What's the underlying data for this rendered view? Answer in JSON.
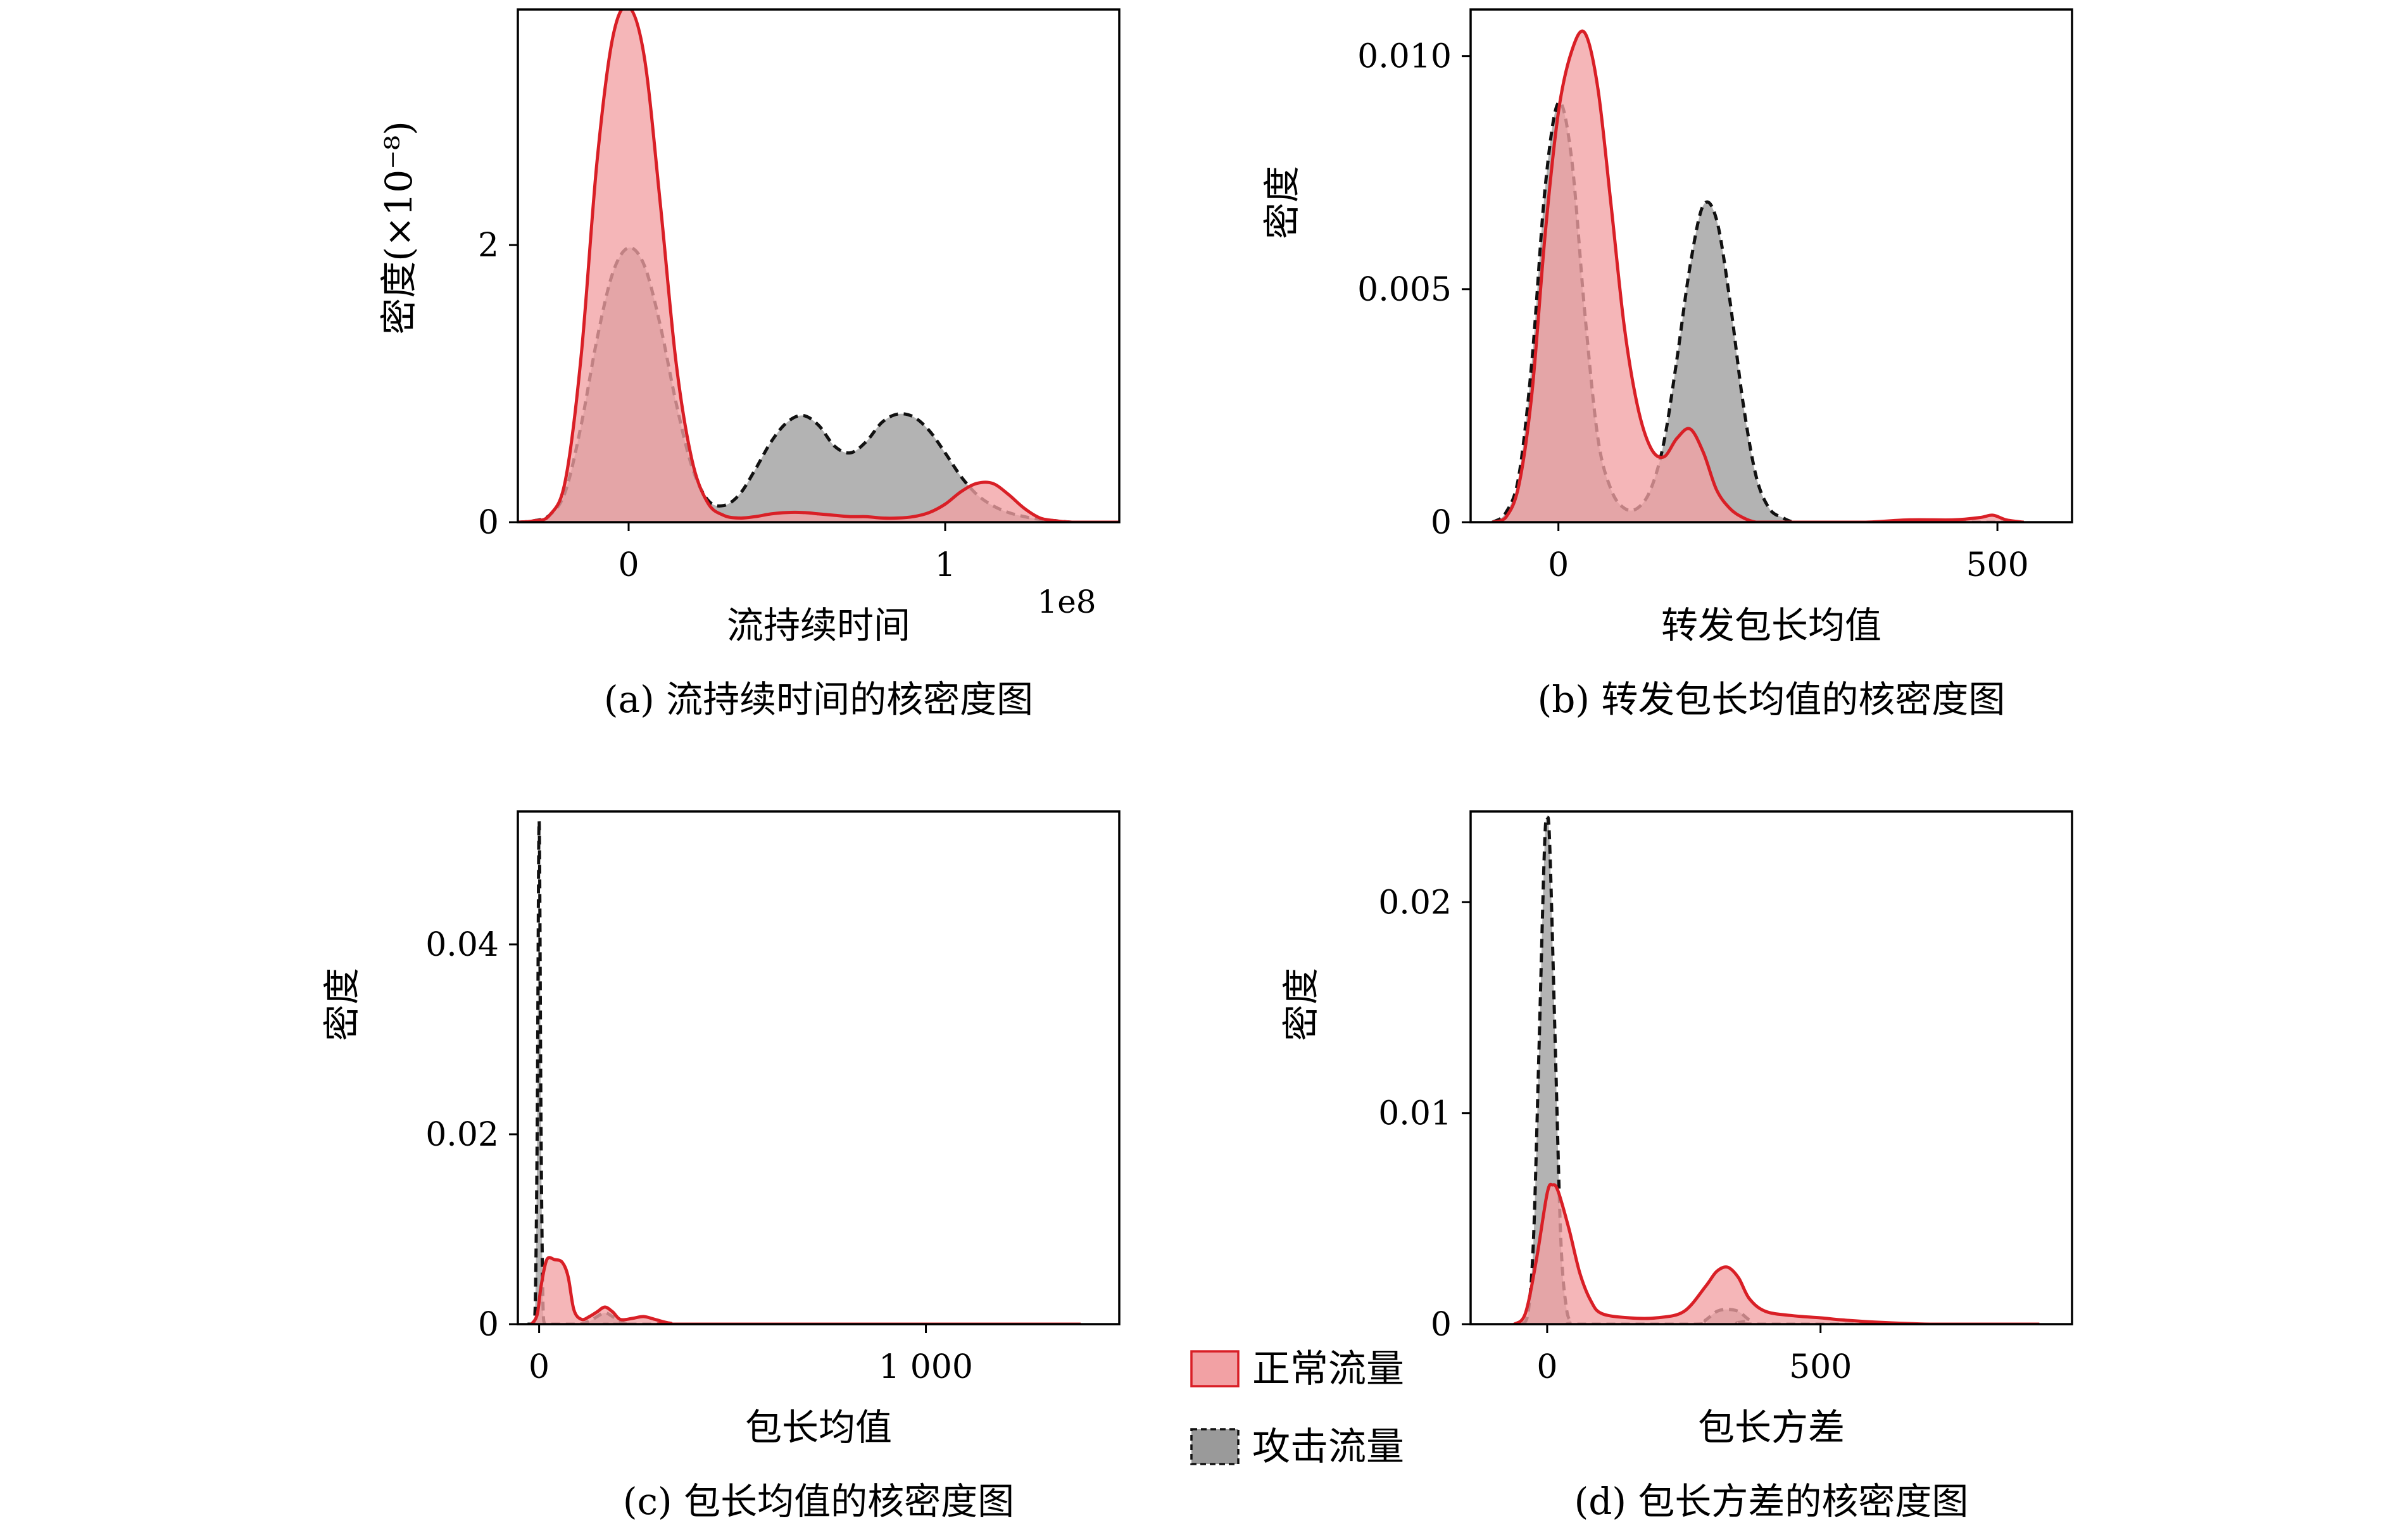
{
  "colors": {
    "normal_line": "#d91f26",
    "normal_fill": "#f2a1a4",
    "attack_line": "#111111",
    "attack_fill": "#9a9a9a"
  },
  "legend": {
    "normal": "正常流量",
    "attack": "攻击流量"
  },
  "chart_data": [
    {
      "type": "area",
      "caption": "(a) 流持续时间的核密度图",
      "xlabel": "流持续时间",
      "ylabel": "密度(×10⁻⁸)",
      "x_offset_label": "1e8",
      "xlim": [
        -0.35,
        1.55
      ],
      "ylim": [
        0,
        3.7
      ],
      "xticks": [
        {
          "value": 0,
          "label": "0"
        },
        {
          "value": 1,
          "label": "1"
        }
      ],
      "yticks": [
        {
          "value": 0,
          "label": "0"
        },
        {
          "value": 2,
          "label": "2"
        }
      ],
      "series": [
        {
          "name": "攻击流量",
          "style": "attack",
          "x": [
            -0.35,
            -0.3,
            -0.25,
            -0.2,
            -0.15,
            -0.1,
            -0.05,
            0,
            0.05,
            0.1,
            0.15,
            0.2,
            0.25,
            0.3,
            0.35,
            0.4,
            0.45,
            0.5,
            0.55,
            0.6,
            0.65,
            0.7,
            0.75,
            0.8,
            0.85,
            0.9,
            0.95,
            1,
            1.05,
            1.1,
            1.15,
            1.2,
            1.25,
            1.3,
            1.35,
            1.4,
            1.45,
            1.5,
            1.55
          ],
          "y": [
            0,
            0.01,
            0.05,
            0.22,
            0.7,
            1.32,
            1.8,
            1.98,
            1.85,
            1.42,
            0.86,
            0.4,
            0.16,
            0.12,
            0.2,
            0.38,
            0.58,
            0.72,
            0.77,
            0.7,
            0.55,
            0.5,
            0.58,
            0.72,
            0.78,
            0.76,
            0.66,
            0.5,
            0.33,
            0.2,
            0.12,
            0.07,
            0.04,
            0.02,
            0.01,
            0,
            0,
            0,
            0
          ]
        },
        {
          "name": "正常流量",
          "style": "normal",
          "x": [
            -0.35,
            -0.3,
            -0.25,
            -0.2,
            -0.15,
            -0.1,
            -0.05,
            0,
            0.05,
            0.1,
            0.15,
            0.2,
            0.25,
            0.3,
            0.35,
            0.4,
            0.45,
            0.5,
            0.55,
            0.6,
            0.65,
            0.7,
            0.75,
            0.8,
            0.85,
            0.9,
            0.95,
            1,
            1.05,
            1.1,
            1.15,
            1.2,
            1.25,
            1.3,
            1.35,
            1.4,
            1.45,
            1.5,
            1.55
          ],
          "y": [
            0,
            0.01,
            0.05,
            0.3,
            1.2,
            2.6,
            3.5,
            3.72,
            3.35,
            2.3,
            1.15,
            0.45,
            0.14,
            0.05,
            0.03,
            0.04,
            0.06,
            0.07,
            0.07,
            0.06,
            0.05,
            0.04,
            0.04,
            0.03,
            0.03,
            0.04,
            0.07,
            0.13,
            0.22,
            0.28,
            0.28,
            0.2,
            0.1,
            0.03,
            0.01,
            0,
            0,
            0,
            0
          ]
        }
      ]
    },
    {
      "type": "area",
      "caption": "(b) 转发包长均值的核密度图",
      "xlabel": "转发包长均值",
      "ylabel": "密度",
      "xlim": [
        -100,
        585
      ],
      "ylim": [
        0,
        0.011
      ],
      "xticks": [
        {
          "value": 0,
          "label": "0"
        },
        {
          "value": 500,
          "label": "500"
        }
      ],
      "yticks": [
        {
          "value": 0,
          "label": "0"
        },
        {
          "value": 0.005,
          "label": "0.005"
        },
        {
          "value": 0.01,
          "label": "0.010"
        }
      ],
      "series": [
        {
          "name": "攻击流量",
          "style": "attack",
          "x": [
            -75,
            -60,
            -45,
            -30,
            -15,
            0,
            15,
            30,
            45,
            60,
            75,
            90,
            105,
            120,
            135,
            150,
            165,
            180,
            195,
            210,
            225,
            240,
            255,
            270,
            300,
            350,
            400,
            450,
            500,
            530
          ],
          "y": [
            0,
            0.0002,
            0.001,
            0.0035,
            0.0072,
            0.009,
            0.0078,
            0.0045,
            0.0018,
            0.0007,
            0.0003,
            0.0003,
            0.0007,
            0.0017,
            0.0035,
            0.0055,
            0.0068,
            0.0065,
            0.0048,
            0.0026,
            0.001,
            0.0003,
            0.0001,
            0,
            0,
            0,
            0,
            0,
            0,
            0
          ]
        },
        {
          "name": "正常流量",
          "style": "normal",
          "x": [
            -75,
            -60,
            -45,
            -30,
            -15,
            0,
            15,
            30,
            45,
            60,
            75,
            90,
            105,
            120,
            135,
            150,
            165,
            180,
            195,
            210,
            225,
            240,
            255,
            270,
            300,
            350,
            400,
            450,
            480,
            495,
            510,
            530
          ],
          "y": [
            0,
            0.0001,
            0.0008,
            0.0028,
            0.0062,
            0.0088,
            0.0101,
            0.0105,
            0.0093,
            0.0068,
            0.0042,
            0.0025,
            0.0016,
            0.0014,
            0.0018,
            0.002,
            0.0015,
            0.0007,
            0.0003,
            0.0001,
            0,
            0,
            0,
            0,
            0,
            0,
            5e-05,
            5e-05,
            0.0001,
            0.00015,
            5e-05,
            0
          ]
        }
      ]
    },
    {
      "type": "area",
      "caption": "(c)  包长均值的核密度图",
      "xlabel": "包长均值",
      "ylabel": "密度",
      "xlim": [
        -55,
        1500
      ],
      "ylim": [
        0,
        0.054
      ],
      "xticks": [
        {
          "value": 0,
          "label": "0"
        },
        {
          "value": 1000,
          "label": "1 000"
        }
      ],
      "yticks": [
        {
          "value": 0,
          "label": "0"
        },
        {
          "value": 0.02,
          "label": "0.02"
        },
        {
          "value": 0.04,
          "label": "0.04"
        }
      ],
      "series": [
        {
          "name": "攻击流量",
          "style": "attack",
          "x": [
            -30,
            -15,
            -10,
            -5,
            0,
            5,
            10,
            15,
            30,
            100,
            130,
            150,
            170,
            190,
            210,
            230,
            260,
            1400
          ],
          "y": [
            0,
            0,
            0.002,
            0.02,
            0.053,
            0.02,
            0.002,
            0,
            0,
            0,
            0.0003,
            0.0008,
            0.0012,
            0.0008,
            0.0003,
            0,
            0,
            0
          ]
        },
        {
          "name": "正常流量",
          "style": "normal",
          "x": [
            -20,
            -5,
            5,
            20,
            40,
            60,
            75,
            90,
            110,
            130,
            150,
            170,
            190,
            210,
            240,
            270,
            300,
            340,
            400,
            1400
          ],
          "y": [
            0,
            0.001,
            0.004,
            0.0068,
            0.0068,
            0.0065,
            0.005,
            0.0015,
            0.0005,
            0.0008,
            0.0013,
            0.0018,
            0.0013,
            0.0005,
            0.0006,
            0.0008,
            0.0005,
            0.0001,
            0,
            0
          ]
        }
      ]
    },
    {
      "type": "area",
      "caption": "(d) 包长方差的核密度图",
      "xlabel": "包长方差",
      "ylabel": "密度",
      "xlim": [
        -140,
        960
      ],
      "ylim": [
        0,
        0.0243
      ],
      "xticks": [
        {
          "value": 0,
          "label": "0"
        },
        {
          "value": 500,
          "label": "500"
        }
      ],
      "yticks": [
        {
          "value": 0,
          "label": "0"
        },
        {
          "value": 0.01,
          "label": "0.01"
        },
        {
          "value": 0.02,
          "label": "0.02"
        }
      ],
      "series": [
        {
          "name": "攻击流量",
          "style": "attack",
          "x": [
            -45,
            -35,
            -25,
            -15,
            -5,
            0,
            5,
            15,
            25,
            35,
            45,
            55,
            270,
            290,
            310,
            330,
            350,
            370,
            390,
            900
          ],
          "y": [
            0,
            0.0005,
            0.004,
            0.013,
            0.0225,
            0.024,
            0.0225,
            0.013,
            0.004,
            0.0008,
            0.0001,
            0,
            0,
            0.0002,
            0.0006,
            0.0007,
            0.0006,
            0.0002,
            0,
            0
          ]
        },
        {
          "name": "正常流量",
          "style": "normal",
          "x": [
            -60,
            -40,
            -20,
            0,
            10,
            20,
            40,
            60,
            80,
            100,
            150,
            200,
            250,
            290,
            310,
            330,
            350,
            370,
            400,
            450,
            500,
            540,
            600,
            700,
            800,
            900
          ],
          "y": [
            0,
            0.0005,
            0.003,
            0.0062,
            0.0066,
            0.0063,
            0.0045,
            0.0024,
            0.0011,
            0.0005,
            0.0003,
            0.0003,
            0.0006,
            0.0018,
            0.0025,
            0.0027,
            0.0022,
            0.0012,
            0.0006,
            0.0004,
            0.0003,
            0.0002,
            0.0001,
            0,
            0,
            0
          ]
        }
      ]
    }
  ]
}
